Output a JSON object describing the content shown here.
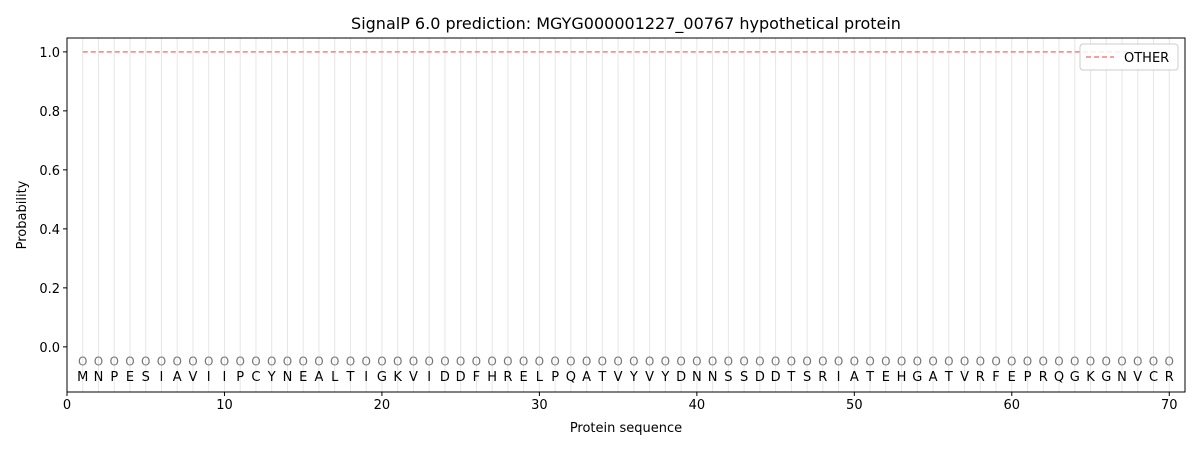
{
  "chart_data": {
    "type": "line",
    "title": "SignalP 6.0 prediction: MGYG000001227_00767 hypothetical protein",
    "xlabel": "Protein sequence",
    "ylabel": "Probability",
    "xlim": [
      0,
      71
    ],
    "ylim": [
      -0.153,
      1.047
    ],
    "xticks": [
      0,
      10,
      20,
      30,
      40,
      50,
      60,
      70
    ],
    "yticks": [
      "0.0",
      "0.2",
      "0.4",
      "0.6",
      "0.8",
      "1.0"
    ],
    "grid": "vertical lines at each residue",
    "legend_placement": "top-right",
    "sequence": [
      "M",
      "N",
      "P",
      "E",
      "S",
      "I",
      "A",
      "V",
      "I",
      "I",
      "P",
      "C",
      "Y",
      "N",
      "E",
      "A",
      "L",
      "T",
      "I",
      "G",
      "K",
      "V",
      "I",
      "D",
      "D",
      "F",
      "H",
      "R",
      "E",
      "L",
      "P",
      "Q",
      "A",
      "T",
      "V",
      "Y",
      "V",
      "Y",
      "D",
      "N",
      "N",
      "S",
      "S",
      "D",
      "D",
      "T",
      "S",
      "R",
      "I",
      "A",
      "T",
      "E",
      "H",
      "G",
      "A",
      "T",
      "V",
      "R",
      "F",
      "E",
      "P",
      "R",
      "Q",
      "G",
      "K",
      "G",
      "N",
      "V",
      "C",
      "R"
    ],
    "region_label": "O",
    "region_label_y": -0.05,
    "series": [
      {
        "name": "OTHER",
        "color": "#f08080",
        "style": "dashed",
        "x_range": [
          1,
          70
        ],
        "value": 1.0
      }
    ]
  }
}
